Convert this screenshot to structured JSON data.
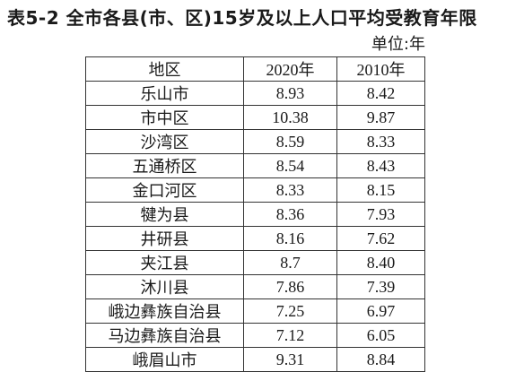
{
  "document": {
    "title": "表5-2 全市各县(市、区)15岁及以上人口平均受教育年限",
    "unit": "单位:年"
  },
  "table": {
    "headers": [
      "地区",
      "2020年",
      "2010年"
    ],
    "rows": [
      [
        "乐山市",
        "8.93",
        "8.42"
      ],
      [
        "市中区",
        "10.38",
        "9.87"
      ],
      [
        "沙湾区",
        "8.59",
        "8.33"
      ],
      [
        "五通桥区",
        "8.54",
        "8.43"
      ],
      [
        "金口河区",
        "8.33",
        "8.15"
      ],
      [
        "犍为县",
        "8.36",
        "7.93"
      ],
      [
        "井研县",
        "8.16",
        "7.62"
      ],
      [
        "夹江县",
        "8.7",
        "8.40"
      ],
      [
        "沐川县",
        "7.86",
        "7.39"
      ],
      [
        "峨边彝族自治县",
        "7.25",
        "6.97"
      ],
      [
        "马边彝族自治县",
        "7.12",
        "6.05"
      ],
      [
        "峨眉山市",
        "9.31",
        "8.84"
      ]
    ]
  }
}
